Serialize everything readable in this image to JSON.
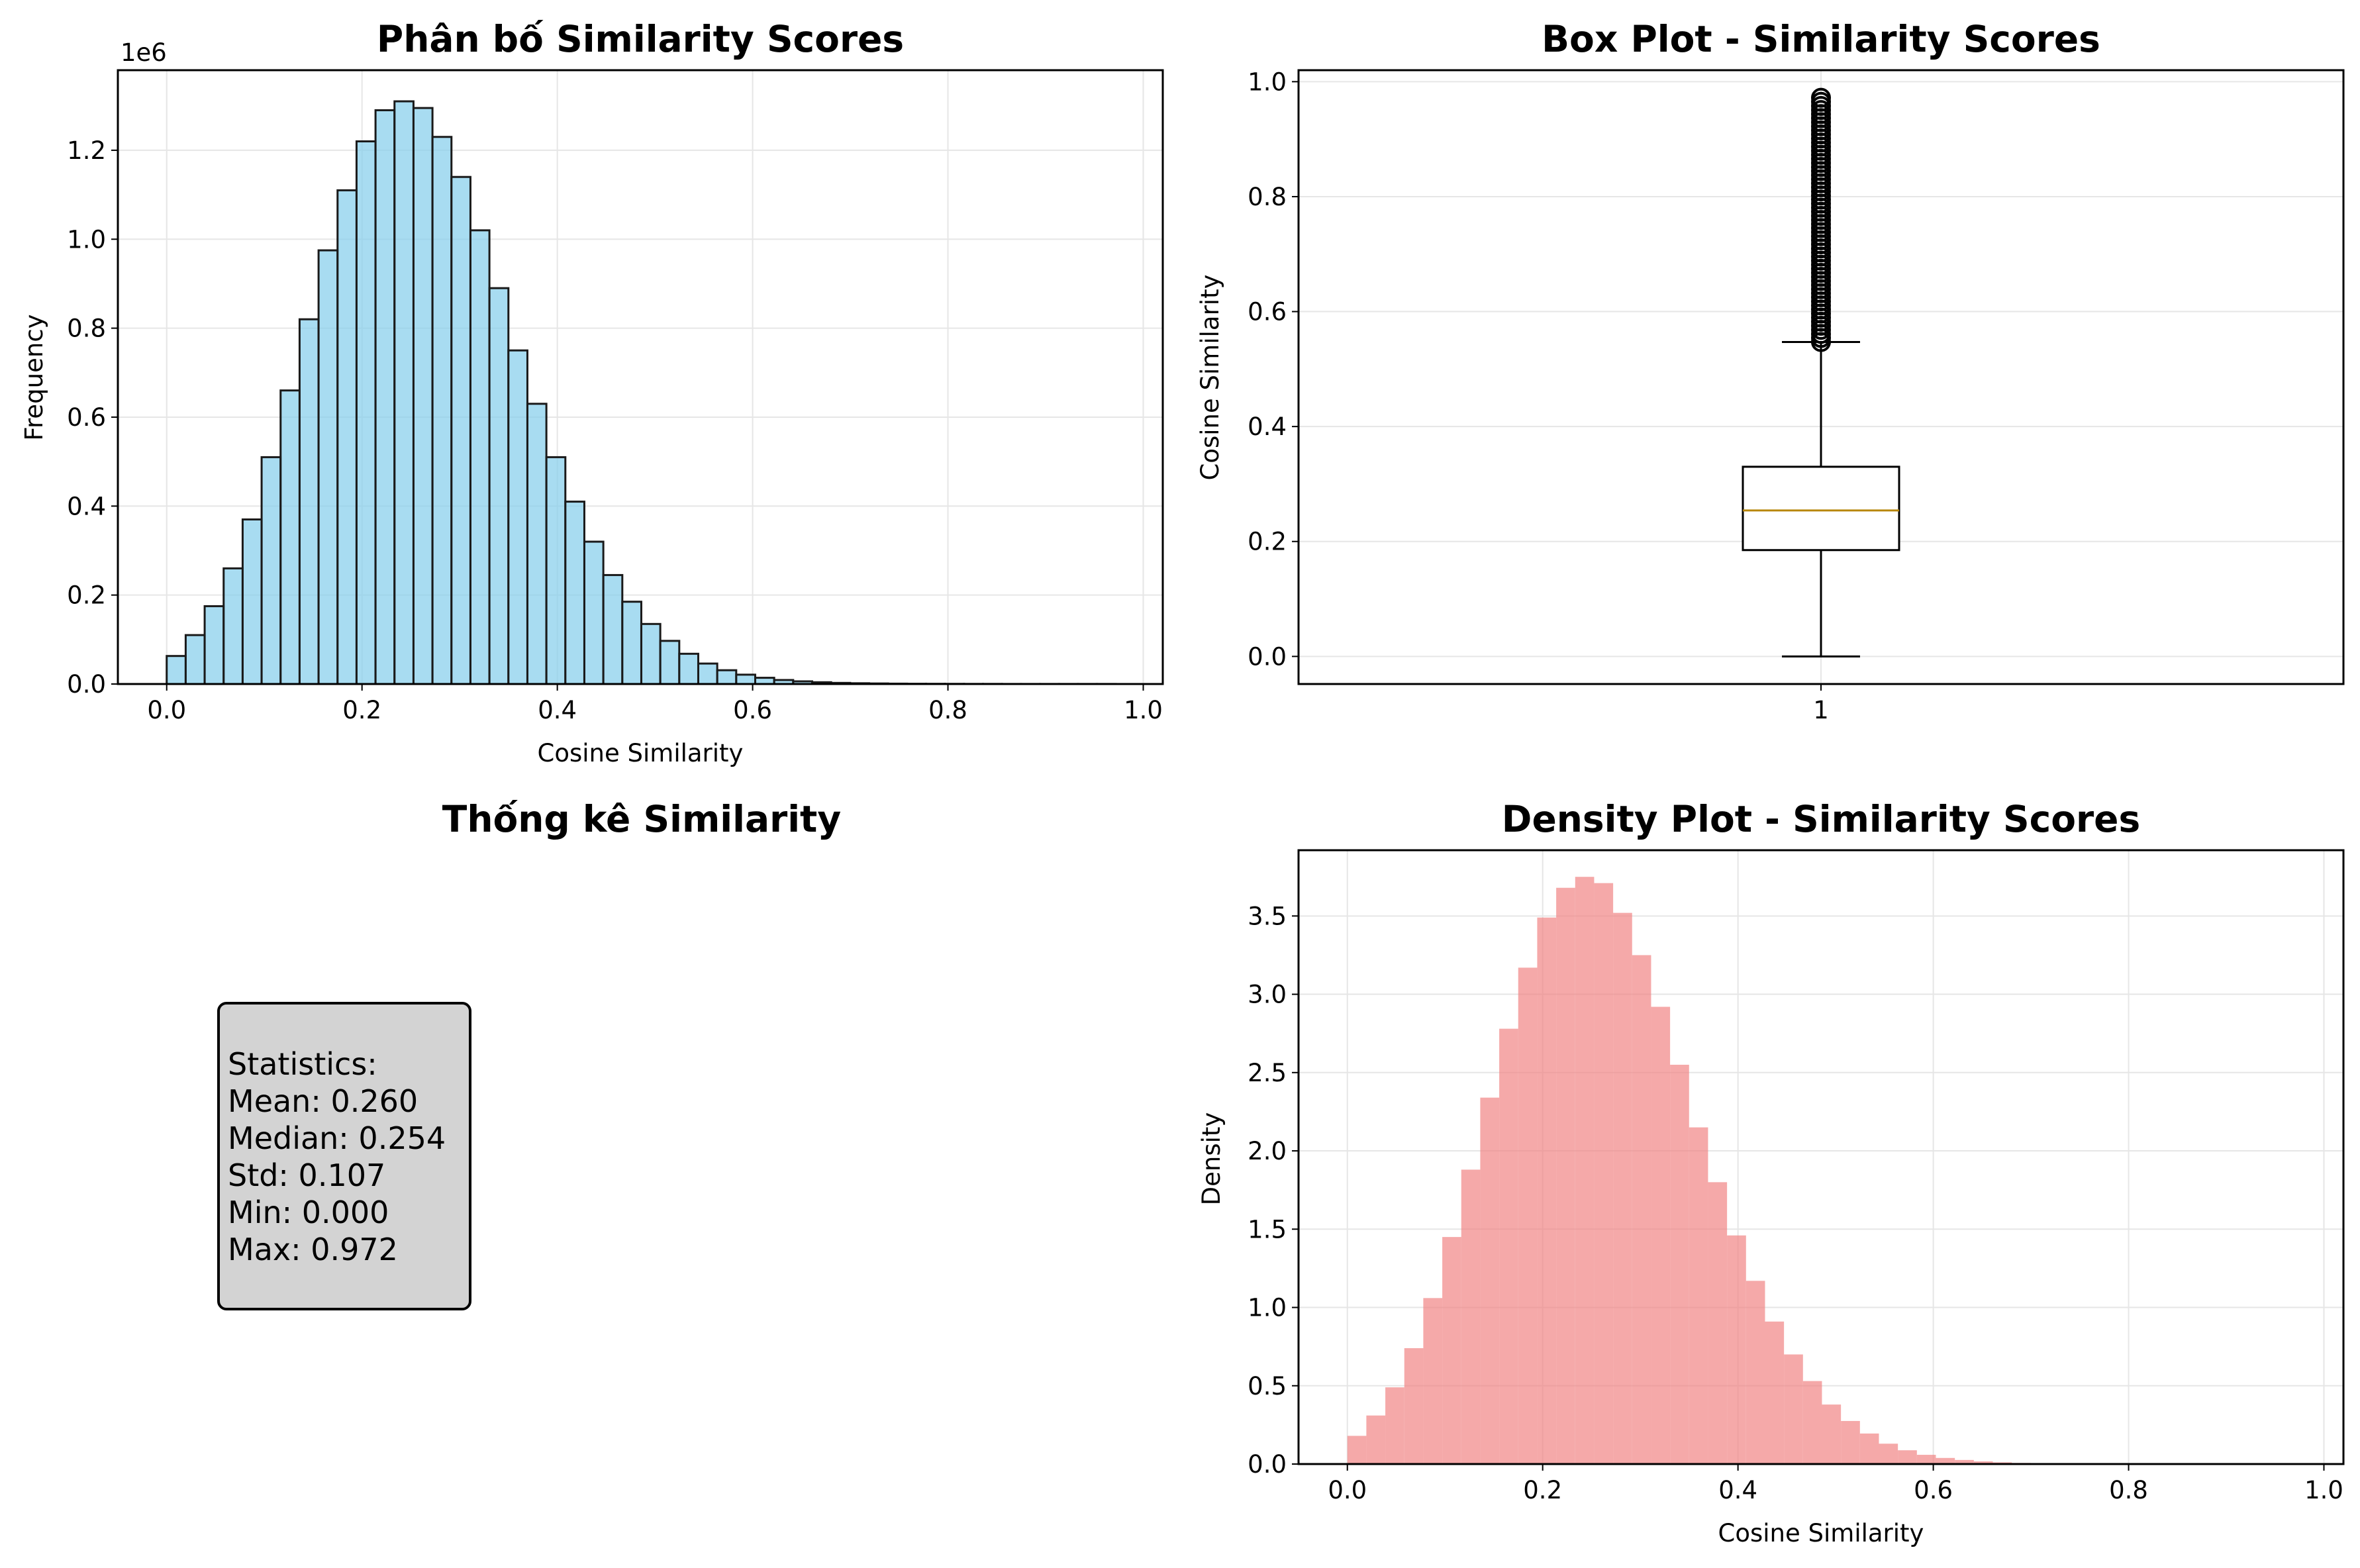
{
  "colors": {
    "hist": "#87ceeb",
    "density": "#f08080",
    "median": "#b8860b",
    "grid": "#e6e6e6"
  },
  "chart_data": [
    {
      "type": "bar",
      "title": "Phân bố Similarity Scores",
      "xlabel": "Cosine Similarity",
      "ylabel": "Frequency",
      "offset_label": "1e6",
      "xlim": [
        -0.05,
        1.02
      ],
      "ylim": [
        0,
        1.38
      ],
      "grid": true,
      "x_ticks": [
        0.0,
        0.2,
        0.4,
        0.6,
        0.8,
        1.0
      ],
      "x_tick_labels": [
        "0.0",
        "0.2",
        "0.4",
        "0.6",
        "0.8",
        "1.0"
      ],
      "y_ticks": [
        0.0,
        0.2,
        0.4,
        0.6,
        0.8,
        1.0,
        1.2
      ],
      "y_tick_labels": [
        "0.0",
        "0.2",
        "0.4",
        "0.6",
        "0.8",
        "1.0",
        "1.2"
      ],
      "bin_start": 0.0,
      "bin_width": 0.01944,
      "values": [
        0.063,
        0.11,
        0.175,
        0.26,
        0.37,
        0.51,
        0.66,
        0.82,
        0.975,
        1.11,
        1.22,
        1.29,
        1.31,
        1.295,
        1.23,
        1.14,
        1.02,
        0.89,
        0.75,
        0.63,
        0.51,
        0.41,
        0.32,
        0.245,
        0.185,
        0.135,
        0.097,
        0.068,
        0.046,
        0.031,
        0.021,
        0.014,
        0.009,
        0.006,
        0.004,
        0.0025,
        0.0017,
        0.0012,
        0.0008,
        0.0005,
        0.0004,
        0.0003,
        0.0002,
        0.0002,
        0.0001,
        0.0001,
        0.0001,
        0.0001,
        0.0001,
        0.0001
      ]
    },
    {
      "type": "box",
      "title": "Box Plot - Similarity Scores",
      "xlabel": "",
      "ylabel": "Cosine Similarity",
      "category": "1",
      "ylim": [
        -0.048,
        1.02
      ],
      "grid": true,
      "y_ticks": [
        0.0,
        0.2,
        0.4,
        0.6,
        0.8,
        1.0
      ],
      "y_tick_labels": [
        "0.0",
        "0.2",
        "0.4",
        "0.6",
        "0.8",
        "1.0"
      ],
      "whisker_low": 0.0,
      "q1": 0.185,
      "median": 0.254,
      "q3": 0.33,
      "whisker_high": 0.547,
      "outliers_min": 0.547,
      "outliers_max": 0.972
    },
    {
      "type": "bar",
      "title": "Density Plot - Similarity Scores",
      "xlabel": "Cosine Similarity",
      "ylabel": "Density",
      "xlim": [
        -0.05,
        1.02
      ],
      "ylim": [
        0,
        3.92
      ],
      "grid": true,
      "x_ticks": [
        0.0,
        0.2,
        0.4,
        0.6,
        0.8,
        1.0
      ],
      "x_tick_labels": [
        "0.0",
        "0.2",
        "0.4",
        "0.6",
        "0.8",
        "1.0"
      ],
      "y_ticks": [
        0.0,
        0.5,
        1.0,
        1.5,
        2.0,
        2.5,
        3.0,
        3.5
      ],
      "y_tick_labels": [
        "0.0",
        "0.5",
        "1.0",
        "1.5",
        "2.0",
        "2.5",
        "3.0",
        "3.5"
      ],
      "bin_start": 0.0,
      "bin_width": 0.01944,
      "values": [
        0.18,
        0.31,
        0.49,
        0.74,
        1.06,
        1.45,
        1.88,
        2.34,
        2.78,
        3.17,
        3.49,
        3.68,
        3.75,
        3.71,
        3.52,
        3.25,
        2.92,
        2.55,
        2.15,
        1.8,
        1.46,
        1.17,
        0.91,
        0.7,
        0.53,
        0.38,
        0.275,
        0.195,
        0.13,
        0.088,
        0.059,
        0.039,
        0.026,
        0.017,
        0.011,
        0.007,
        0.005,
        0.003,
        0.002,
        0.0015,
        0.001,
        0.0008,
        0.0006,
        0.0005,
        0.0004,
        0.0003,
        0.0003,
        0.0002,
        0.0002,
        0.0002
      ]
    }
  ],
  "stats": {
    "title": "Thống kê Similarity",
    "lines": [
      "Statistics:",
      "Mean: 0.260",
      "Median: 0.254",
      "Std: 0.107",
      "Min: 0.000",
      "Max: 0.972"
    ]
  }
}
